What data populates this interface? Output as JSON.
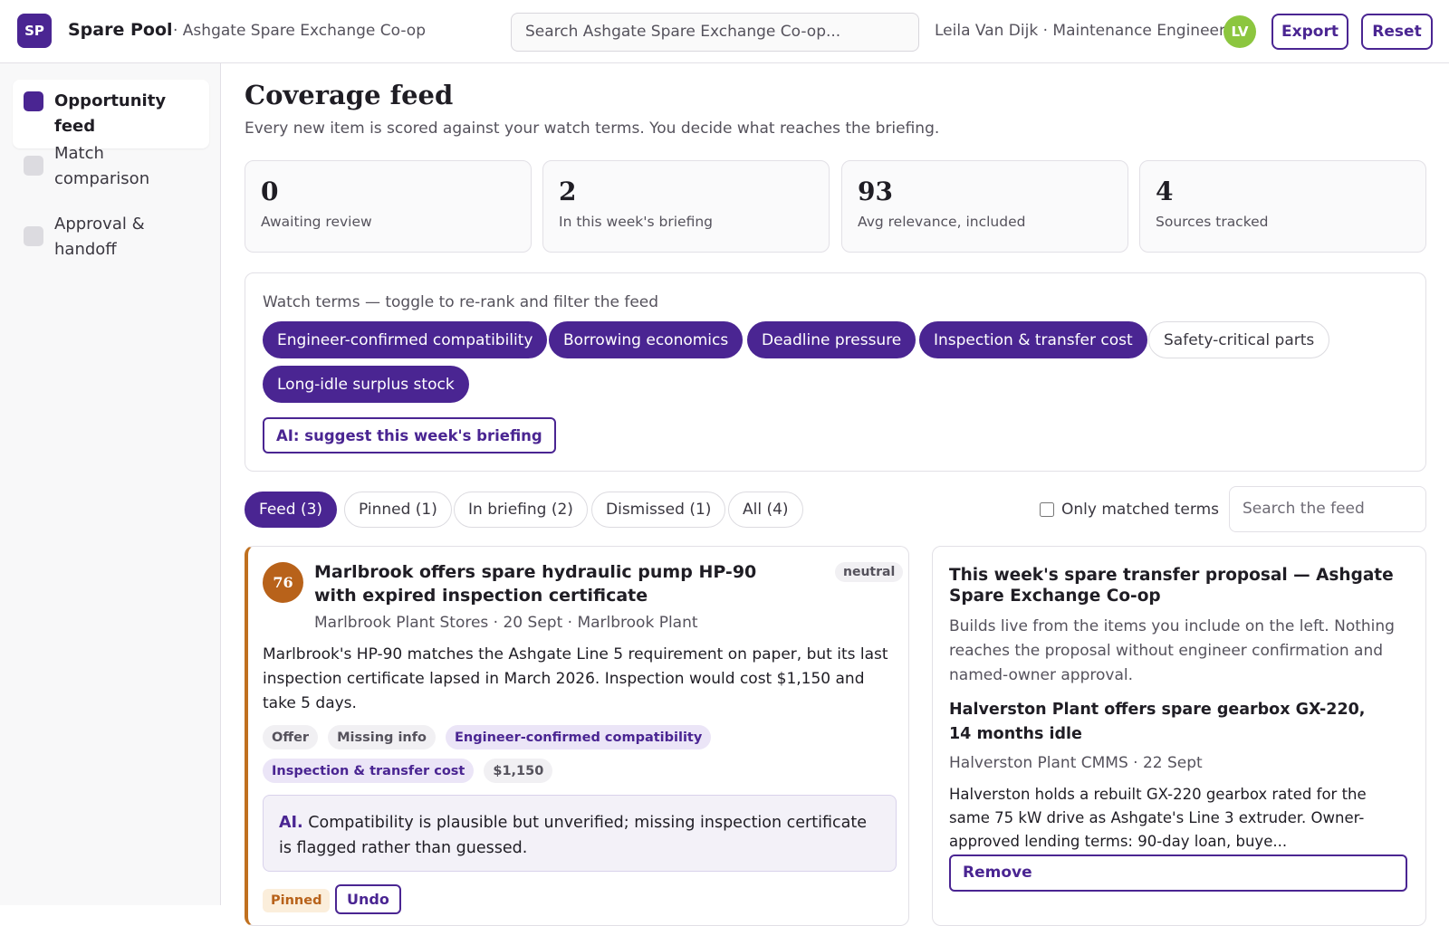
{
  "header": {
    "logo": "SP",
    "app_name": "Spare Pool",
    "org": "· Ashgate Spare Exchange Co-op",
    "search_placeholder": "Search Ashgate Spare Exchange Co-op...",
    "user": "Leila Van Dijk · Maintenance Engineer",
    "avatar": "LV",
    "buttons": [
      "Export",
      "Reset"
    ]
  },
  "sidebar": {
    "items": [
      "Opportunity feed",
      "Match comparison",
      "Approval & handoff"
    ]
  },
  "page": {
    "title": "Coverage feed",
    "subtitle": "Every new item is scored against your watch terms. You decide what reaches the briefing."
  },
  "stats": [
    {
      "value": 0,
      "label": "Awaiting review"
    },
    {
      "value": 2,
      "label": "In this week's briefing"
    },
    {
      "value": 93,
      "label": "Avg relevance, included"
    },
    {
      "value": 4,
      "label": "Sources tracked"
    }
  ],
  "watch_terms": {
    "heading": "Watch terms — toggle to re-rank and filter the feed",
    "terms": [
      "Engineer-confirmed compatibility",
      "Borrowing economics",
      "Deadline pressure",
      "Inspection & transfer cost",
      "Safety-critical parts",
      "Long-idle surplus stock"
    ],
    "ai_button": "AI: suggest this week's briefing"
  },
  "tabs": [
    "Feed (3)",
    "Pinned (1)",
    "In briefing (2)",
    "Dismissed (1)",
    "All (4)"
  ],
  "filter": {
    "checkbox_label": "Only matched terms",
    "search_placeholder": "Search the feed"
  },
  "feed_item": {
    "score": 76,
    "title": "Marlbrook offers spare hydraulic pump HP-90 with expired inspection certificate",
    "meta": "Marlbrook Plant Stores · 20 Sept · Marlbrook Plant",
    "sentiment": "neutral",
    "body": "Marlbrook's HP-90 matches the Ashgate Line 5 requirement on paper, but its last inspection certificate lapsed in March 2026. Inspection would cost $1,150 and take 5 days.",
    "tags": [
      "Offer",
      "Missing info",
      "Engineer-confirmed compatibility",
      "Inspection & transfer cost",
      "$1,150"
    ],
    "ai_label": "AI.",
    "ai_note": "Compatibility is plausible but unverified; missing inspection certificate is flagged rather than guessed.",
    "status": "Pinned",
    "undo": "Undo"
  },
  "proposal": {
    "title": "This week's spare transfer proposal — Ashgate Spare Exchange Co-op",
    "description": "Builds live from the items you include on the left. Nothing reaches the proposal without engineer confirmation and named-owner approval.",
    "item": {
      "title": "Halverston Plant offers spare gearbox GX-220, 14 months idle",
      "meta": "Halverston Plant CMMS · 22 Sept",
      "body": "Halverston holds a rebuilt GX-220 gearbox rated for the same 75 kW drive as Ashgate's Line 3 extruder. Owner-approved lending terms: 90-day loan, buye...",
      "action": "Remove"
    }
  }
}
